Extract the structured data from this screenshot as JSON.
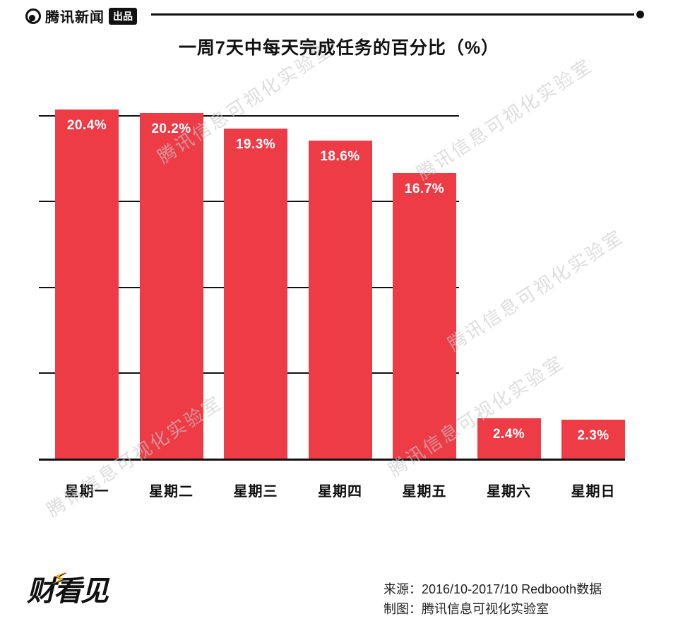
{
  "header": {
    "brand_text": "腾讯新闻",
    "badge_text": "出品"
  },
  "watermark": {
    "text": "腾讯信息可视化实验室"
  },
  "chart_data": {
    "type": "bar",
    "title": "一周7天中每天完成任务的百分比（%）",
    "categories": [
      "星期一",
      "星期二",
      "星期三",
      "星期四",
      "星期五",
      "星期六",
      "星期日"
    ],
    "values": [
      20.4,
      20.2,
      19.3,
      18.6,
      16.7,
      2.4,
      2.3
    ],
    "value_labels": [
      "20.4%",
      "20.2%",
      "19.3%",
      "18.6%",
      "16.7%",
      "2.4%",
      "2.3%"
    ],
    "ylim": [
      0,
      21
    ],
    "gridline_values": [
      5,
      10,
      15,
      20
    ],
    "grid": true,
    "legend_position": "none",
    "bar_color": "#ee3c46",
    "value_label_color": "#ffffff",
    "axis_color": "#111111"
  },
  "icons": {
    "bolt": "⚡"
  },
  "footer": {
    "logo_text": "财看见",
    "source_line": "来源：2016/10-2017/10 Redbooth数据",
    "credit_line": "制图：腾讯信息可视化实验室"
  }
}
